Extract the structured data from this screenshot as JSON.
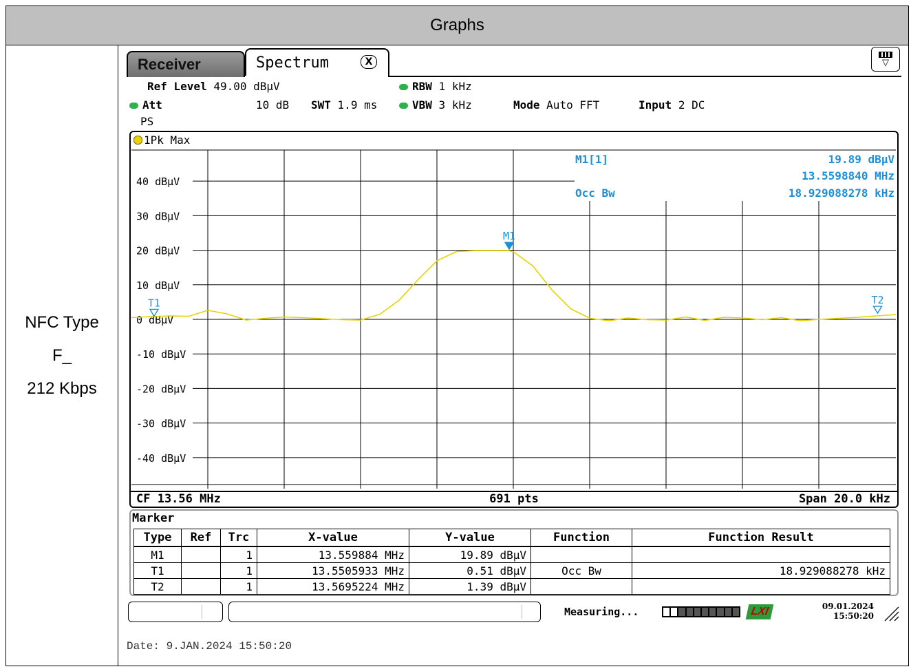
{
  "table": {
    "header": "Graphs",
    "row_label_lines": [
      "NFC Type",
      "F_",
      "212 Kbps"
    ]
  },
  "instrument": {
    "tabs": {
      "receiver": "Receiver",
      "spectrum": "Spectrum",
      "close_glyph": "X"
    },
    "settings": {
      "ref_level_label": "Ref Level",
      "ref_level_value": "49.00 dBµV",
      "att_label": "Att",
      "att_value": "10 dB",
      "swt_label": "SWT",
      "swt_value": "1.9 ms",
      "rbw_label": "RBW",
      "rbw_value": "1 kHz",
      "vbw_label": "VBW",
      "vbw_value": "3 kHz",
      "mode_label": "Mode",
      "mode_value": "Auto FFT",
      "input_label": "Input",
      "input_value": "2 DC",
      "ps_label": "PS"
    },
    "trace_label": "1Pk Max",
    "marker_readout": {
      "m1_label": "M1[1]",
      "m1_level": "19.89 dBµV",
      "m1_freq": "13.5598840 MHz",
      "occbw_label": "Occ Bw",
      "occbw_value": "18.929088278 kHz"
    },
    "footer": {
      "cf": "CF 13.56 MHz",
      "pts": "691 pts",
      "span": "Span 20.0 kHz"
    },
    "marker_table": {
      "title": "Marker",
      "headers": [
        "Type",
        "Ref",
        "Trc",
        "X-value",
        "Y-value",
        "Function",
        "Function Result"
      ],
      "rows": [
        [
          "M1",
          "",
          "1",
          "13.559884 MHz",
          "19.89 dBµV",
          "",
          ""
        ],
        [
          "T1",
          "",
          "1",
          "13.5505933 MHz",
          "0.51 dBµV",
          "Occ Bw",
          "18.929088278 kHz"
        ],
        [
          "T2",
          "",
          "1",
          "13.5695224 MHz",
          "1.39 dBµV",
          "",
          ""
        ]
      ]
    },
    "status": {
      "measuring": "Measuring...",
      "lxi": "LXI",
      "date": "09.01.2024",
      "time": "15:50:20"
    }
  },
  "date_line": "Date: 9.JAN.2024  15:50:20",
  "chart_data": {
    "type": "line",
    "title": "",
    "xlabel": "",
    "ylabel": "",
    "x_center_mhz": 13.56,
    "x_span_khz": 20.0,
    "xlim_khz": [
      -10,
      10
    ],
    "ylim": [
      -49.0,
      49.0
    ],
    "y_ticks": [
      {
        "value": 40,
        "label": "40 dBµV"
      },
      {
        "value": 30,
        "label": "30 dBµV"
      },
      {
        "value": 20,
        "label": "20 dBµV"
      },
      {
        "value": 10,
        "label": "10 dBµV"
      },
      {
        "value": 0,
        "label": "0 dBµV"
      },
      {
        "value": -10,
        "label": "-10 dBµV"
      },
      {
        "value": -20,
        "label": "-20 dBµV"
      },
      {
        "value": -30,
        "label": "-30 dBµV"
      },
      {
        "value": -40,
        "label": "-40 dBµV"
      }
    ],
    "grid": true,
    "trace_color": "#e6d200",
    "marker_color": "#1e8fd6",
    "series": [
      {
        "name": "1Pk Max",
        "x_khz": [
          -10,
          -9.5,
          -9,
          -8.5,
          -8,
          -7.5,
          -7,
          -6.5,
          -6,
          -5.5,
          -5,
          -4.5,
          -4,
          -3.5,
          -3,
          -2.5,
          -2,
          -1.5,
          -1,
          -0.5,
          -0.12,
          0,
          0.5,
          1,
          1.5,
          2,
          2.5,
          3,
          3.5,
          4,
          4.5,
          5,
          5.5,
          6,
          6.5,
          7,
          7.5,
          8,
          8.5,
          9,
          9.5,
          10
        ],
        "y": [
          0.5,
          0.8,
          1.0,
          0.9,
          2.6,
          1.6,
          -0.2,
          0.3,
          0.7,
          0.5,
          0.2,
          -0.1,
          -0.2,
          1.5,
          5.5,
          11.5,
          17.0,
          19.6,
          19.9,
          19.89,
          19.89,
          19.5,
          15.5,
          8.5,
          3.0,
          0.3,
          -0.4,
          0.4,
          -0.1,
          -0.2,
          0.7,
          -0.3,
          0.6,
          0.4,
          -0.1,
          0.5,
          -0.4,
          0.0,
          0.3,
          0.6,
          1.0,
          1.39
        ]
      }
    ],
    "markers": [
      {
        "label": "M1",
        "x_khz": -0.116,
        "y": 19.89,
        "symbol": "filled-down-triangle"
      },
      {
        "label": "T1",
        "x_khz": -9.4067,
        "y": 0.51,
        "symbol": "open-down-triangle"
      },
      {
        "label": "T2",
        "x_khz": 9.5224,
        "y": 1.39,
        "symbol": "open-down-triangle"
      }
    ]
  }
}
